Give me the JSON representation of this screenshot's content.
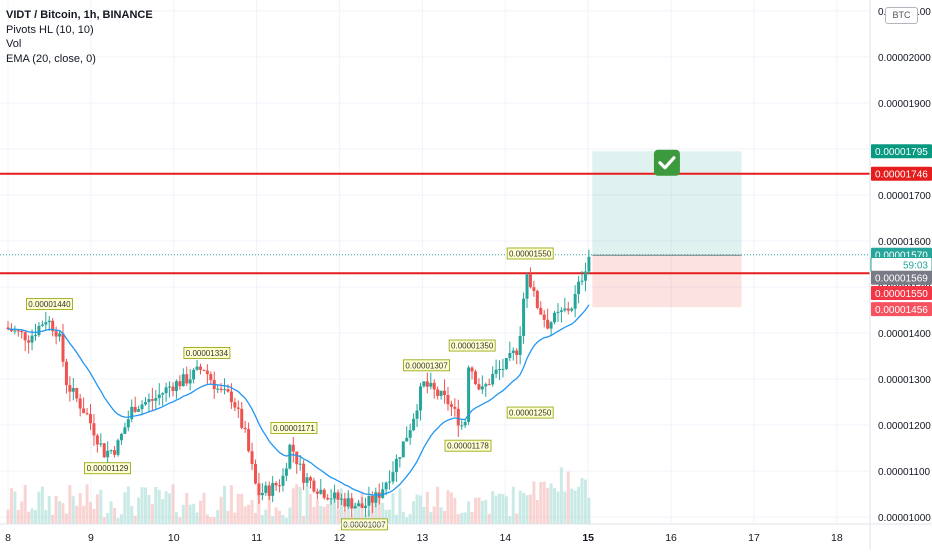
{
  "legend": {
    "symbol": "VIDT / Bitcoin, 1h, BINANCE",
    "ind1": "Pivots HL (10, 10)",
    "ind2": "Vol",
    "ind3": "EMA (20, close, 0)"
  },
  "currency": "BTC",
  "chart_data": {
    "type": "candlestick",
    "x_ticks": [
      "8",
      "9",
      "10",
      "11",
      "12",
      "13",
      "14",
      "15",
      "16",
      "17",
      "18"
    ],
    "y_ticks": [
      "0.00001000",
      "0.00001100",
      "0.00001200",
      "0.00001300",
      "0.00001400",
      "0.00001500",
      "0.00001600",
      "0.00001700",
      "0.00001800",
      "0.00001900",
      "0.00002000",
      "0.00002100"
    ],
    "ylim": [
      9.85e-06,
      2.115e-05
    ],
    "xlim": [
      8,
      18.4
    ],
    "pivots": [
      {
        "label": "0.00001440",
        "x": 8.5,
        "y": 1.44e-05,
        "pos": "high"
      },
      {
        "label": "0.00001129",
        "x": 9.2,
        "y": 1.129e-05,
        "pos": "low"
      },
      {
        "label": "0.00001334",
        "x": 10.4,
        "y": 1.334e-05,
        "pos": "high"
      },
      {
        "label": "0.00001171",
        "x": 11.45,
        "y": 1.171e-05,
        "pos": "high"
      },
      {
        "label": "0.00001007",
        "x": 12.3,
        "y": 1.007e-05,
        "pos": "low"
      },
      {
        "label": "0.00001307",
        "x": 13.05,
        "y": 1.307e-05,
        "pos": "high"
      },
      {
        "label": "0.00001350",
        "x": 13.6,
        "y": 1.35e-05,
        "pos": "high"
      },
      {
        "label": "0.00001178",
        "x": 13.55,
        "y": 1.178e-05,
        "pos": "low"
      },
      {
        "label": "0.00001250",
        "x": 14.3,
        "y": 1.25e-05,
        "pos": "low"
      },
      {
        "label": "0.00001550",
        "x": 14.3,
        "y": 1.55e-05,
        "pos": "high"
      }
    ],
    "horizontal_lines": [
      {
        "y": 1.746e-05,
        "color": "#e51d1d"
      },
      {
        "y": 1.53e-05,
        "color": "#e51d1d"
      }
    ],
    "position_tool": {
      "x_start": 15.05,
      "x_end": 16.85,
      "entry": 1.569e-05,
      "target": 1.795e-05,
      "stop": 1.456e-05
    },
    "price_labels": [
      {
        "text": "0.00001795",
        "y": 1.795e-05,
        "bg": "#089981"
      },
      {
        "text": "0.00001746",
        "y": 1.746e-05,
        "bg": "#e51d1d"
      },
      {
        "text": "0.00001570",
        "y": 1.57e-05,
        "bg": "#26a69a"
      },
      {
        "text": "59:03",
        "y": 1.549e-05,
        "bg": "#ffffff",
        "fg": "#26a69a",
        "border": "#26a69a"
      },
      {
        "text": "0.00001569",
        "y": 1.52e-05,
        "bg": "#787b86"
      },
      {
        "text": "0.00001550",
        "y": 1.487e-05,
        "bg": "#f23645"
      },
      {
        "text": "0.00001456",
        "y": 1.452e-05,
        "bg": "#f7525f"
      }
    ],
    "colors": {
      "up": "#26a69a",
      "down": "#ef5350",
      "ema": "#2196f3",
      "grid": "#f0f3fa"
    }
  }
}
